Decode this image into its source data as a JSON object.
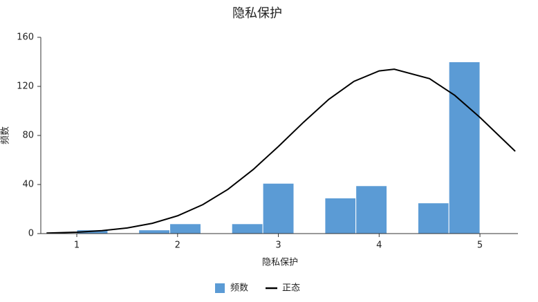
{
  "chart_data": {
    "type": "histogram",
    "title": "隐私保护",
    "x_label": "隐私保护",
    "y_label": "频数",
    "xlim": [
      0.643,
      5.377
    ],
    "xticks": [
      1,
      2,
      3,
      4,
      5
    ],
    "ylim": [
      0,
      160
    ],
    "yticks": [
      0,
      40,
      80,
      120,
      160
    ],
    "legend": "bottom",
    "histogram": {
      "name": "频数",
      "color": "#5b9bd5",
      "bins": [
        1,
        1.308,
        1.615,
        1.923,
        2.231,
        2.538,
        2.846,
        3.154,
        3.462,
        3.769,
        4.077,
        4.385,
        4.692,
        5
      ],
      "counts": [
        3,
        0,
        3,
        8,
        0,
        8,
        41,
        0,
        29,
        39,
        0,
        25,
        140
      ]
    },
    "curve": {
      "name": "正态",
      "color": "#000000",
      "x": [
        0.7,
        1,
        1.25,
        1.5,
        1.75,
        2,
        2.25,
        2.5,
        2.75,
        3,
        3.25,
        3.5,
        3.75,
        4,
        4.15,
        4.5,
        4.75,
        5,
        5.35
      ],
      "values": [
        0.44,
        1.1,
        2.4,
        4.6,
        8.4,
        14.5,
        23.6,
        36.1,
        52.2,
        71,
        90.8,
        109.4,
        124.1,
        132.6,
        134,
        126.3,
        112.7,
        94.7,
        67.1
      ]
    }
  }
}
